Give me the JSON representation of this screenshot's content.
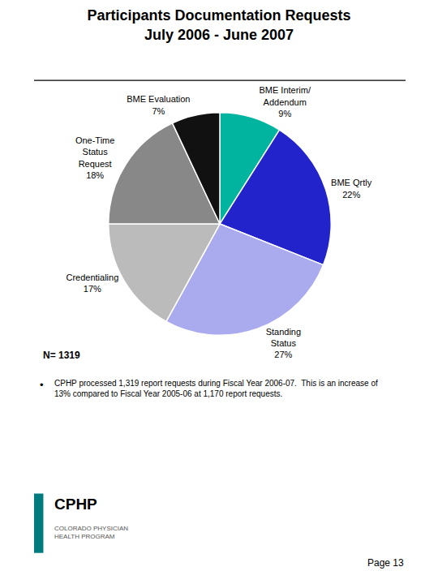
{
  "chart_data": {
    "type": "pie",
    "title": "Participants Documentation Requests",
    "subtitle": "July 2006 - June 2007",
    "categories": [
      "BME Interim/\nAddendum\n9%",
      "BME Qrtly\n22%",
      "Standing\nStatus\n27%",
      "Credentialing\n17%",
      "One-Time\nStatus\nRequest\n18%",
      "BME Evaluation\n7%"
    ],
    "values": [
      9,
      22,
      27,
      17,
      18,
      7
    ],
    "colors": [
      "#00B4A0",
      "#2323CC",
      "#AAAAEE",
      "#BBBBBB",
      "#888888",
      "#111111"
    ],
    "data_labels": true,
    "annotations": [
      "N= 1319",
      "•",
      "CPHP processed 1,319 report requests during Fiscal Year 2006-07.  This is an increase of\n13% compared to Fiscal Year 2005-06 at 1,170 report requests.",
      "CPHP",
      "COLORADO PHYSICIAN\nHEALTH PROGRAM",
      "Page 13"
    ]
  }
}
